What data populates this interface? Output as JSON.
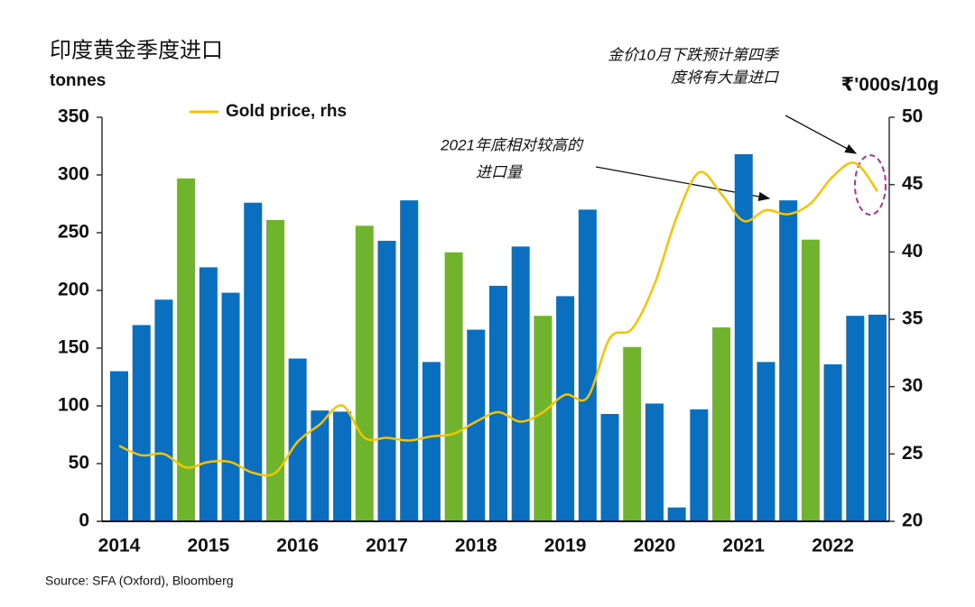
{
  "chart_data": {
    "type": "bar",
    "title": "印度黄金季度进口",
    "y_label": "tonnes",
    "y2_label": "₹'000s/10g",
    "source": "Source: SFA (Oxford), Bloomberg",
    "annotations": [
      "金价10月下跌预计第四季",
      "度将有大量进口",
      "2021年底相对较高的",
      "进口量"
    ],
    "categories": [
      "2014",
      null,
      null,
      null,
      "2015",
      null,
      null,
      null,
      "2016",
      null,
      null,
      null,
      "2017",
      null,
      null,
      null,
      "2018",
      null,
      null,
      null,
      "2019",
      null,
      null,
      null,
      "2020",
      null,
      null,
      null,
      "2021",
      null,
      null,
      null,
      "2022",
      null,
      null
    ],
    "values": [
      130,
      170,
      192,
      297,
      220,
      198,
      276,
      261,
      141,
      96,
      95,
      256,
      243,
      278,
      138,
      233,
      166,
      204,
      238,
      178,
      195,
      270,
      93,
      151,
      102,
      12,
      97,
      168,
      318,
      138,
      278,
      244,
      136,
      178,
      179
    ],
    "colors": [
      "#0a6fbf",
      "#0a6fbf",
      "#0a6fbf",
      "#6fb42c",
      "#0a6fbf",
      "#0a6fbf",
      "#0a6fbf",
      "#6fb42c",
      "#0a6fbf",
      "#0a6fbf",
      "#0a6fbf",
      "#6fb42c",
      "#0a6fbf",
      "#0a6fbf",
      "#0a6fbf",
      "#6fb42c",
      "#0a6fbf",
      "#0a6fbf",
      "#0a6fbf",
      "#6fb42c",
      "#0a6fbf",
      "#0a6fbf",
      "#0a6fbf",
      "#6fb42c",
      "#0a6fbf",
      "#0a6fbf",
      "#0a6fbf",
      "#6fb42c",
      "#0a6fbf",
      "#0a6fbf",
      "#0a6fbf",
      "#6fb42c",
      "#0a6fbf",
      "#0a6fbf",
      "#0a6fbf"
    ],
    "series": [
      {
        "name": "Gold price, rhs",
        "color": "#f5c400",
        "axis": "y2",
        "type": "line",
        "values": [
          25.6,
          24.9,
          25.0,
          24.0,
          24.4,
          24.4,
          23.6,
          23.6,
          25.9,
          27.2,
          28.6,
          26.2,
          26.2,
          26.0,
          26.3,
          26.5,
          27.4,
          28.1,
          27.4,
          28.1,
          29.4,
          29.2,
          33.6,
          34.3,
          37.6,
          42.6,
          45.9,
          44.3,
          42.3,
          43.1,
          42.8,
          43.6,
          45.6,
          46.6,
          44.5
        ]
      }
    ],
    "ylim": [
      0,
      350
    ],
    "yticks": [
      0,
      50,
      100,
      150,
      200,
      250,
      300,
      350
    ],
    "y2lim": [
      20,
      50
    ],
    "y2ticks": [
      20,
      25,
      30,
      35,
      40,
      45,
      50
    ],
    "legend": "top-left"
  }
}
